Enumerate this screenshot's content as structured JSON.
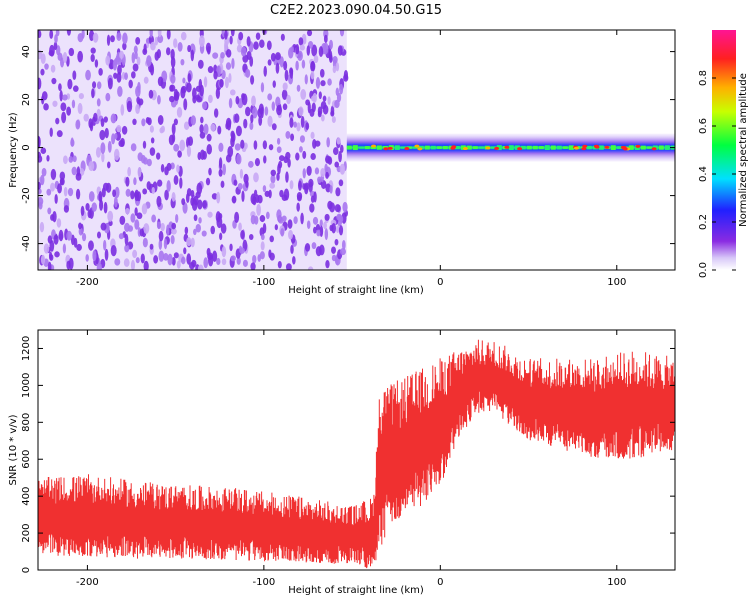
{
  "title": "C2E2.2023.090.04.50.G15",
  "colors": {
    "snr": "#f03030",
    "spectro_noise": "#7b2fe0",
    "spectro_light": "#c9a8f5"
  },
  "chart_data": [
    {
      "type": "heatmap",
      "xlabel": "Height of straight line (km)",
      "ylabel": "Frequency (Hz)",
      "xlim": [
        -228,
        133
      ],
      "ylim": [
        -51,
        49
      ],
      "xticks": [
        -200,
        -100,
        0,
        100
      ],
      "yticks": [
        -40,
        -20,
        0,
        20,
        40
      ],
      "grid": false,
      "noise_region_x": [
        -228,
        -53
      ],
      "signal_region_x": [
        -53,
        133
      ],
      "signal_frequency_hz": 0,
      "colorbar": {
        "label": "Normalized spectral amplitude",
        "range": [
          0.0,
          1.0
        ],
        "ticks": [
          0.0,
          0.2,
          0.4,
          0.6,
          0.8
        ],
        "tick_labels": [
          "0.0",
          "0.2",
          "0.4",
          "0.6",
          "0.8"
        ]
      }
    },
    {
      "type": "area",
      "xlabel": "Height of straight line (km)",
      "ylabel": "SNR (10 * v/v)",
      "xlim": [
        -228,
        133
      ],
      "ylim": [
        0,
        1300
      ],
      "xticks": [
        -200,
        -100,
        0,
        100
      ],
      "yticks": [
        0,
        200,
        400,
        600,
        800,
        1000,
        1200
      ],
      "grid": false,
      "series": [
        {
          "x": [
            -228,
            -200,
            -170,
            -140,
            -110,
            -80,
            -50,
            -38,
            -34,
            -30,
            -20,
            -10,
            0,
            10,
            20,
            30,
            50,
            70,
            90,
            110,
            133
          ],
          "y_low": [
            80,
            70,
            60,
            60,
            50,
            40,
            30,
            0,
            100,
            200,
            300,
            350,
            450,
            700,
            850,
            850,
            700,
            650,
            600,
            600,
            650
          ],
          "y_high": [
            500,
            520,
            480,
            460,
            440,
            400,
            350,
            400,
            1050,
            1000,
            1050,
            1100,
            1150,
            1200,
            1250,
            1250,
            1150,
            1150,
            1150,
            1200,
            1150
          ]
        }
      ]
    }
  ]
}
